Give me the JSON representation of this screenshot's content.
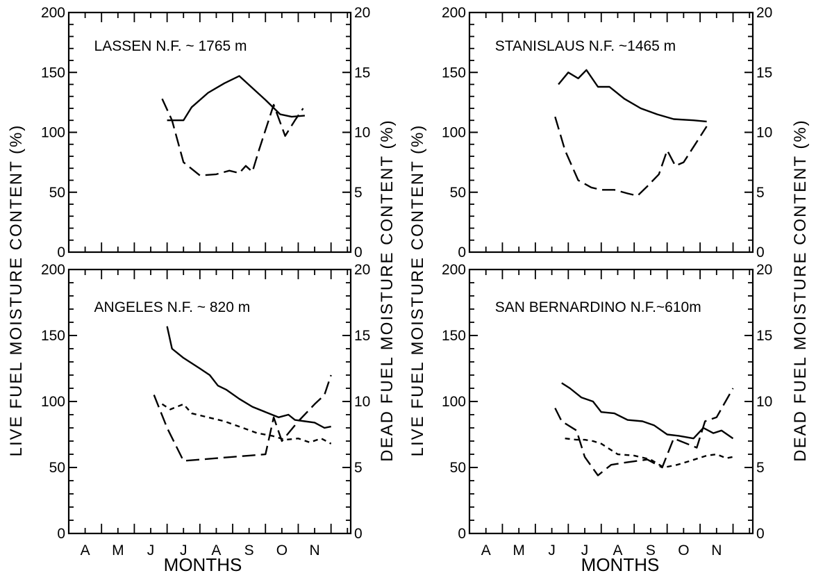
{
  "figure": {
    "left_axis_title": "LIVE FUEL MOISTURE CONTENT (%)",
    "right_axis_title": "DEAD FUEL MOISTURE CONTENT (%)",
    "xlabel": "MONTHS"
  },
  "chart_data": [
    {
      "type": "line",
      "title": "LASSEN N.F. ~ 1765 m",
      "xlabel": "MONTHS",
      "ylabel": "LIVE FUEL MOISTURE CONTENT (%)",
      "y2label": "DEAD FUEL MOISTURE CONTENT (%)",
      "ylim": [
        0,
        200
      ],
      "y2lim": [
        0,
        20
      ],
      "yticks": [
        0,
        50,
        100,
        150,
        200
      ],
      "y2ticks": [
        0,
        5,
        10,
        15,
        20
      ],
      "xlim": [
        0,
        8.6
      ],
      "month_labels": [
        "A",
        "M",
        "J",
        "J",
        "A",
        "S",
        "O",
        "N"
      ],
      "grid": false,
      "series": [
        {
          "axis": "left",
          "style": "solid",
          "x": [
            3.0,
            3.5,
            3.75,
            4.25,
            4.75,
            5.2,
            6.0,
            6.45,
            6.8,
            7.2
          ],
          "y": [
            110,
            110,
            121,
            133,
            141,
            147,
            127,
            115,
            113,
            114
          ]
        },
        {
          "axis": "right",
          "style": "long-dash",
          "x": [
            2.85,
            3.15,
            3.5,
            4.0,
            4.5,
            4.9,
            5.2,
            5.4,
            5.6,
            5.8,
            6.25,
            6.6,
            6.9,
            7.15
          ],
          "y": [
            12.8,
            11.0,
            7.5,
            6.4,
            6.5,
            6.8,
            6.6,
            7.2,
            6.7,
            8.5,
            12.3,
            9.7,
            11.0,
            12.0
          ]
        }
      ]
    },
    {
      "type": "line",
      "title": "STANISLAUS N.F. ~1465 m",
      "xlabel": "MONTHS",
      "ylabel": "LIVE FUEL MOISTURE CONTENT (%)",
      "y2label": "DEAD FUEL MOISTURE CONTENT (%)",
      "ylim": [
        0,
        200
      ],
      "y2lim": [
        0,
        20
      ],
      "yticks": [
        0,
        50,
        100,
        150,
        200
      ],
      "y2ticks": [
        0,
        5,
        10,
        15,
        20
      ],
      "xlim": [
        0,
        8.6
      ],
      "month_labels": [
        "A",
        "M",
        "J",
        "J",
        "A",
        "S",
        "O",
        "N"
      ],
      "grid": false,
      "series": [
        {
          "axis": "left",
          "style": "solid",
          "x": [
            2.7,
            3.0,
            3.3,
            3.55,
            3.9,
            4.25,
            4.7,
            5.2,
            5.7,
            6.2,
            6.8,
            7.2
          ],
          "y": [
            140,
            150,
            145,
            152,
            138,
            138,
            128,
            120,
            115,
            111,
            110,
            109
          ]
        },
        {
          "axis": "right",
          "style": "long-dash",
          "x": [
            2.6,
            2.9,
            3.3,
            3.7,
            4.0,
            4.4,
            4.8,
            5.1,
            5.4,
            5.75,
            6.0,
            6.25,
            6.5,
            6.85,
            7.2
          ],
          "y": [
            11.3,
            8.5,
            6.0,
            5.4,
            5.2,
            5.2,
            4.9,
            4.7,
            5.5,
            6.5,
            8.5,
            7.2,
            7.5,
            9.0,
            10.5
          ]
        }
      ]
    },
    {
      "type": "line",
      "title": "ANGELES N.F. ~ 820 m",
      "xlabel": "MONTHS",
      "ylabel": "LIVE FUEL MOISTURE CONTENT (%)",
      "y2label": "DEAD FUEL MOISTURE CONTENT (%)",
      "ylim": [
        0,
        200
      ],
      "y2lim": [
        0,
        20
      ],
      "yticks": [
        0,
        50,
        100,
        150,
        200
      ],
      "y2ticks": [
        0,
        5,
        10,
        15,
        20
      ],
      "xlim": [
        0,
        8.6
      ],
      "month_labels": [
        "A",
        "M",
        "J",
        "J",
        "A",
        "S",
        "O",
        "N"
      ],
      "grid": false,
      "series": [
        {
          "axis": "left",
          "style": "solid",
          "x": [
            3.0,
            3.15,
            3.5,
            4.0,
            4.3,
            4.55,
            4.8,
            5.2,
            5.6,
            6.0,
            6.4,
            6.7,
            6.9,
            7.2,
            7.5,
            7.8,
            8.0
          ],
          "y": [
            157,
            140,
            133,
            125,
            120,
            112,
            109,
            102,
            96,
            92,
            88,
            90,
            86,
            85,
            84,
            80,
            81
          ]
        },
        {
          "axis": "right",
          "style": "short-dash",
          "x": [
            2.85,
            3.1,
            3.5,
            3.75,
            4.25,
            4.75,
            5.2,
            5.75,
            6.2,
            6.6,
            7.0,
            7.35,
            7.7,
            8.0
          ],
          "y": [
            9.8,
            9.4,
            9.8,
            9.1,
            8.8,
            8.5,
            8.1,
            7.6,
            7.4,
            7.1,
            7.2,
            6.9,
            7.2,
            6.8
          ]
        },
        {
          "axis": "right",
          "style": "long-dash",
          "x": [
            2.6,
            3.0,
            3.5,
            4.0,
            4.5,
            5.0,
            5.5,
            6.0,
            6.25,
            6.5,
            7.0,
            7.5,
            7.8,
            8.0
          ],
          "y": [
            10.5,
            8.0,
            5.5,
            5.6,
            5.7,
            5.8,
            5.9,
            6.0,
            8.8,
            7.0,
            8.5,
            9.8,
            10.5,
            12.0
          ]
        }
      ]
    },
    {
      "type": "line",
      "title": "SAN BERNARDINO N.F.~610m",
      "xlabel": "MONTHS",
      "ylabel": "LIVE FUEL MOISTURE CONTENT (%)",
      "y2label": "DEAD FUEL MOISTURE CONTENT (%)",
      "ylim": [
        0,
        200
      ],
      "y2lim": [
        0,
        20
      ],
      "yticks": [
        0,
        50,
        100,
        150,
        200
      ],
      "y2ticks": [
        0,
        5,
        10,
        15,
        20
      ],
      "xlim": [
        0,
        8.6
      ],
      "month_labels": [
        "A",
        "M",
        "J",
        "J",
        "A",
        "S",
        "O",
        "N"
      ],
      "grid": false,
      "series": [
        {
          "axis": "left",
          "style": "solid",
          "x": [
            2.8,
            3.05,
            3.4,
            3.75,
            4.0,
            4.4,
            4.8,
            5.25,
            5.6,
            6.0,
            6.35,
            6.8,
            7.1,
            7.4,
            7.65,
            8.0
          ],
          "y": [
            114,
            110,
            103,
            100,
            92,
            91,
            86,
            85,
            82,
            75,
            74,
            72,
            80,
            76,
            78,
            72
          ]
        },
        {
          "axis": "right",
          "style": "short-dash",
          "x": [
            2.9,
            3.25,
            3.5,
            3.75,
            4.0,
            4.5,
            5.0,
            5.5,
            5.9,
            6.3,
            6.7,
            7.2,
            7.5,
            7.8,
            8.0
          ],
          "y": [
            7.2,
            7.1,
            7.1,
            7.0,
            6.8,
            6.0,
            5.9,
            5.6,
            5.0,
            5.2,
            5.5,
            5.9,
            6.0,
            5.7,
            5.8
          ]
        },
        {
          "axis": "right",
          "style": "long-dash",
          "x": [
            2.6,
            2.8,
            3.25,
            3.5,
            3.9,
            4.3,
            4.8,
            5.4,
            5.85,
            6.2,
            6.9,
            7.15,
            7.5,
            8.0
          ],
          "y": [
            9.5,
            8.5,
            7.8,
            5.8,
            4.4,
            5.2,
            5.4,
            5.6,
            5.0,
            7.2,
            6.5,
            8.5,
            8.8,
            11.0
          ]
        }
      ]
    }
  ]
}
